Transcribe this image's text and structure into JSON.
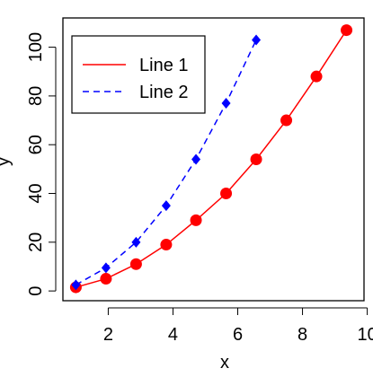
{
  "chart_data": {
    "type": "line",
    "x_label": "x",
    "y_label": "y",
    "xlim": [
      0.6,
      9.9
    ],
    "ylim": [
      -4,
      112
    ],
    "xticks": [
      2,
      4,
      6,
      8,
      10
    ],
    "yticks": [
      0,
      20,
      40,
      60,
      80,
      100
    ],
    "legend": "top-left",
    "series": [
      {
        "name": "Line 1",
        "color": "#ff0000",
        "marker": "circle",
        "dash": "solid",
        "x": [
          1,
          1.93,
          2.86,
          3.79,
          4.71,
          5.64,
          6.57,
          7.5,
          8.43,
          9.36
        ],
        "values": [
          1.5,
          5,
          11,
          19,
          29,
          40,
          54,
          70,
          88,
          107
        ]
      },
      {
        "name": "Line 2",
        "color": "#0000ff",
        "marker": "diamond",
        "dash": "dashed",
        "x": [
          1,
          1.93,
          2.86,
          3.79,
          4.71,
          5.64,
          6.57
        ],
        "values": [
          2.5,
          9.5,
          20,
          35,
          54,
          77,
          103
        ]
      }
    ]
  }
}
